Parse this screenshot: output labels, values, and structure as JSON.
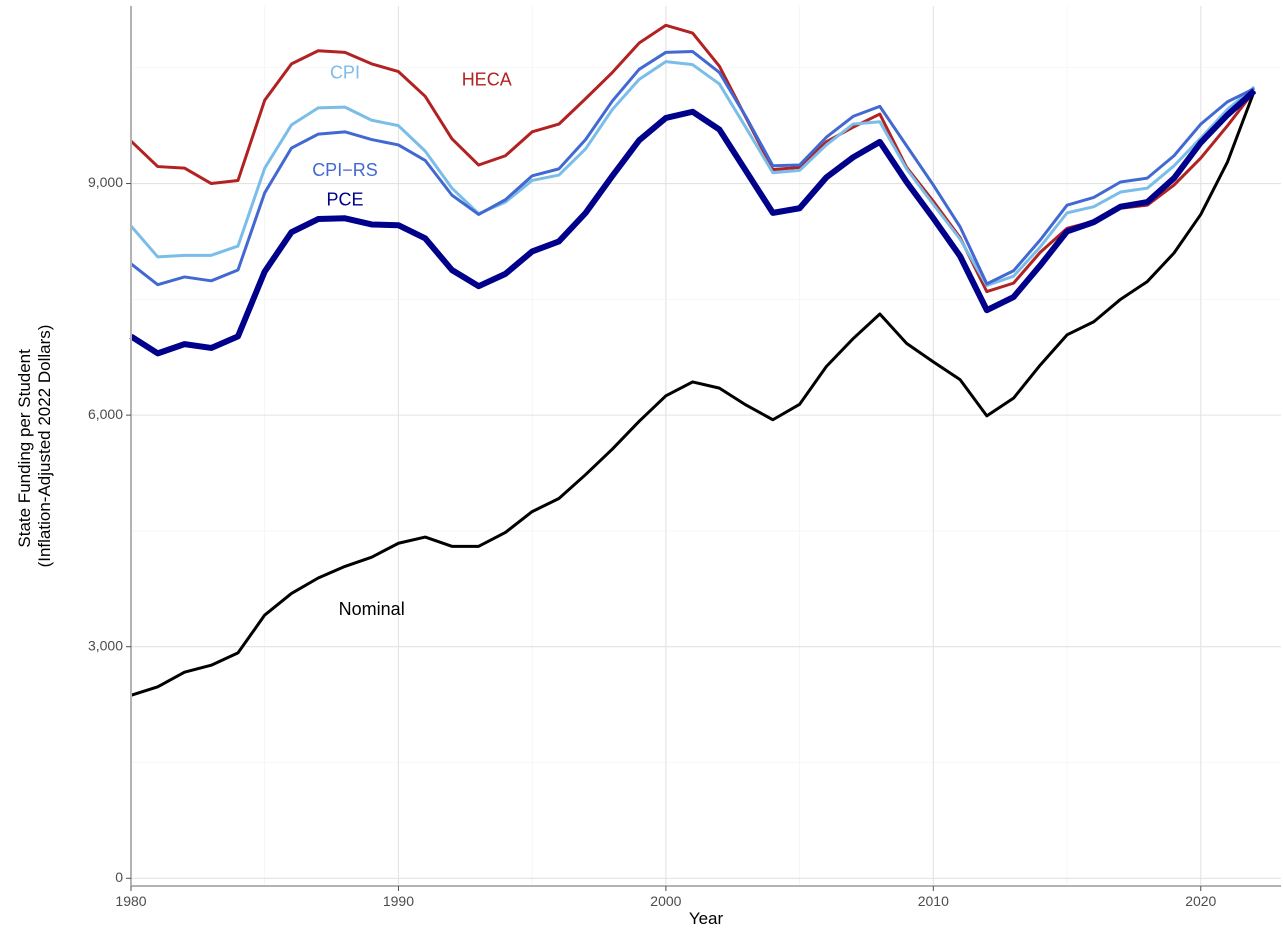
{
  "chart_data": {
    "type": "line",
    "title": "",
    "xlabel": "Year",
    "ylabel_lines": [
      "State Funding per Student",
      "(Inflation-Adjusted 2022 Dollars)"
    ],
    "xlim": [
      1980,
      2023
    ],
    "ylim": [
      -100,
      11300
    ],
    "x_ticks": [
      1980,
      1990,
      2000,
      2010,
      2020
    ],
    "x_tick_labels": [
      "1980",
      "1990",
      "2000",
      "2010",
      "2020"
    ],
    "y_ticks": [
      0,
      3000,
      6000,
      9000
    ],
    "y_tick_labels": [
      "0",
      "3,000",
      "6,000",
      "9,000"
    ],
    "grid": true,
    "legend": "none (direct labels)",
    "x": [
      1980,
      1981,
      1982,
      1983,
      1984,
      1985,
      1986,
      1987,
      1988,
      1989,
      1990,
      1991,
      1992,
      1993,
      1994,
      1995,
      1996,
      1997,
      1998,
      1999,
      2000,
      2001,
      2002,
      2003,
      2004,
      2005,
      2006,
      2007,
      2008,
      2009,
      2010,
      2011,
      2012,
      2013,
      2014,
      2015,
      2016,
      2017,
      2018,
      2019,
      2020,
      2021,
      2022
    ],
    "series": [
      {
        "name": "HECA",
        "color": "#b22222",
        "stroke_width": 3,
        "label_at": [
          1993.3,
          10330
        ],
        "values": [
          9550,
          9220,
          9200,
          9000,
          9040,
          10080,
          10550,
          10720,
          10700,
          10550,
          10450,
          10130,
          9580,
          9240,
          9360,
          9670,
          9770,
          10100,
          10440,
          10820,
          11050,
          10950,
          10520,
          9850,
          9180,
          9210,
          9540,
          9730,
          9900,
          9210,
          8770,
          8300,
          7600,
          7710,
          8110,
          8420,
          8510,
          8680,
          8720,
          8980,
          9330,
          9750,
          10200
        ]
      },
      {
        "name": "CPI",
        "color": "#7bbde9",
        "stroke_width": 3,
        "label_at": [
          1988.0,
          10420
        ],
        "values": [
          8450,
          8050,
          8070,
          8070,
          8190,
          9200,
          9760,
          9980,
          9990,
          9820,
          9750,
          9420,
          8940,
          8610,
          8760,
          9040,
          9110,
          9450,
          9960,
          10350,
          10580,
          10540,
          10290,
          9720,
          9140,
          9170,
          9500,
          9770,
          9800,
          9190,
          8730,
          8280,
          7680,
          7800,
          8180,
          8620,
          8700,
          8890,
          8940,
          9230,
          9590,
          9960,
          10250
        ]
      },
      {
        "name": "CPI−RS",
        "color": "#4169d1",
        "stroke_width": 3,
        "label_at": [
          1988.0,
          9160
        ],
        "values": [
          7960,
          7690,
          7790,
          7740,
          7880,
          8880,
          9460,
          9640,
          9670,
          9570,
          9500,
          9300,
          8850,
          8600,
          8790,
          9100,
          9190,
          9570,
          10070,
          10480,
          10700,
          10710,
          10440,
          9860,
          9230,
          9240,
          9600,
          9870,
          10000,
          9490,
          8980,
          8440,
          7700,
          7870,
          8270,
          8720,
          8820,
          9020,
          9070,
          9360,
          9770,
          10060,
          10230
        ]
      },
      {
        "name": "PCE",
        "color": "#00008b",
        "stroke_width": 6,
        "label_at": [
          1988.0,
          8780
        ],
        "values": [
          7020,
          6800,
          6920,
          6870,
          7020,
          7860,
          8370,
          8540,
          8550,
          8470,
          8460,
          8290,
          7880,
          7670,
          7830,
          8120,
          8250,
          8620,
          9100,
          9560,
          9850,
          9930,
          9700,
          9160,
          8620,
          8680,
          9080,
          9340,
          9540,
          9020,
          8550,
          8060,
          7360,
          7530,
          7940,
          8380,
          8500,
          8700,
          8760,
          9070,
          9530,
          9890,
          10200
        ]
      },
      {
        "name": "Nominal",
        "color": "#000000",
        "stroke_width": 3,
        "label_at": [
          1989.0,
          3470
        ],
        "values": [
          2370,
          2480,
          2670,
          2760,
          2920,
          3410,
          3690,
          3890,
          4040,
          4160,
          4340,
          4420,
          4300,
          4300,
          4480,
          4750,
          4920,
          5230,
          5560,
          5920,
          6250,
          6430,
          6350,
          6130,
          5940,
          6140,
          6630,
          6990,
          7310,
          6930,
          6690,
          6460,
          5990,
          6220,
          6650,
          7040,
          7210,
          7500,
          7730,
          8100,
          8600,
          9280,
          10200
        ]
      }
    ]
  }
}
